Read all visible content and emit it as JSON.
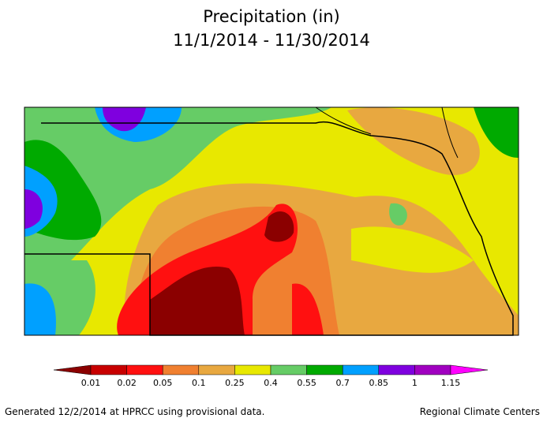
{
  "header": {
    "title": "Precipitation (in)",
    "subtitle": "11/1/2014 - 11/30/2014"
  },
  "legend": {
    "colors": [
      "#8b0000",
      "#c80000",
      "#ff1010",
      "#f08030",
      "#e8a840",
      "#e8e800",
      "#66cc66",
      "#00aa00",
      "#00a0ff",
      "#7f00df",
      "#a000c0",
      "#ff00ff"
    ],
    "labels": [
      "0.01",
      "0.02",
      "0.05",
      "0.1",
      "0.25",
      "0.4",
      "0.55",
      "0.7",
      "0.85",
      "1",
      "1.15"
    ]
  },
  "footer": {
    "left": "Generated 12/2/2014 at HPRCC using provisional data.",
    "right": "Regional Climate Centers"
  }
}
